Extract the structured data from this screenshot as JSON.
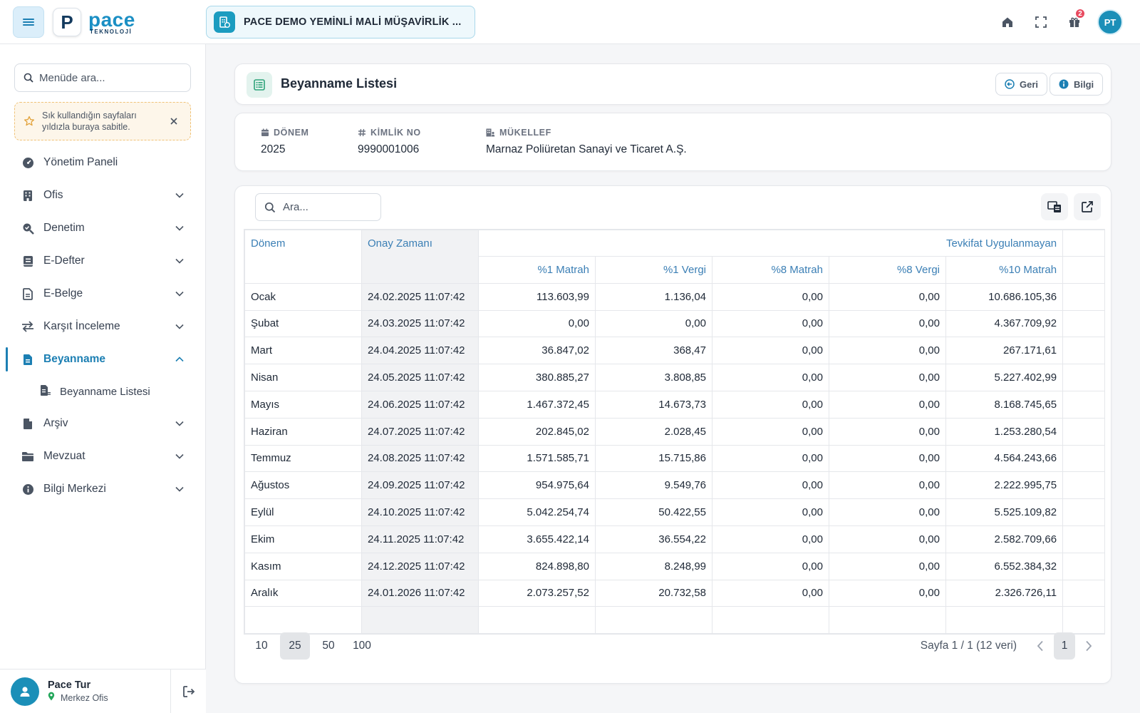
{
  "topbar": {
    "logo_letter": "P",
    "brand": "pace",
    "brand_sub": "TEKNOLOJİ",
    "company": "PACE DEMO YEMİNLİ MALİ MÜŞAVİRLİK ...",
    "notification_count": "2",
    "avatar_initials": "PT",
    "icons": [
      "home-icon",
      "fullscreen-icon",
      "gift-icon"
    ]
  },
  "sidebar": {
    "search_placeholder": "Menüde ara...",
    "pin_hint": "Sık kullandığın sayfaları yıldızla buraya sabitle.",
    "items": [
      {
        "label": "Yönetim Paneli",
        "icon": "dashboard-icon"
      },
      {
        "label": "Ofis",
        "icon": "building-icon"
      },
      {
        "label": "Denetim",
        "icon": "search-check-icon"
      },
      {
        "label": "E-Defter",
        "icon": "book-icon"
      },
      {
        "label": "E-Belge",
        "icon": "document-icon"
      },
      {
        "label": "Karşıt İnceleme",
        "icon": "arrows-swap-icon"
      },
      {
        "label": "Beyanname",
        "icon": "file-text-icon"
      },
      {
        "label": "Arşiv",
        "icon": "file-icon"
      },
      {
        "label": "Mevzuat",
        "icon": "folder-icon"
      },
      {
        "label": "Bilgi Merkezi",
        "icon": "info-icon"
      }
    ],
    "sub_item": "Beyanname Listesi",
    "user": {
      "name": "Pace Tur",
      "office": "Merkez Ofis"
    }
  },
  "header": {
    "title": "Beyanname Listesi",
    "back_label": "Geri",
    "info_label": "Bilgi"
  },
  "info": {
    "donem_label": "DÖNEM",
    "donem_value": "2025",
    "kimlik_label": "KİMLİK NO",
    "kimlik_value": "9990001006",
    "mukellef_label": "MÜKELLEF",
    "mukellef_value": "Marnaz Poliüretan Sanayi ve Ticaret A.Ş."
  },
  "table": {
    "search_placeholder": "Ara...",
    "col_donem": "Dönem",
    "col_onay": "Onay Zamanı",
    "group_header": "Tevkifat Uygulanmayan",
    "sub_headers": [
      "%1 Matrah",
      "%1 Vergi",
      "%8 Matrah",
      "%8 Vergi",
      "%10 Matrah"
    ],
    "rows": [
      {
        "donem": "Ocak",
        "onay": "24.02.2025 11:07:42",
        "v": [
          "113.603,99",
          "1.136,04",
          "0,00",
          "0,00",
          "10.686.105,36"
        ]
      },
      {
        "donem": "Şubat",
        "onay": "24.03.2025 11:07:42",
        "v": [
          "0,00",
          "0,00",
          "0,00",
          "0,00",
          "4.367.709,92"
        ]
      },
      {
        "donem": "Mart",
        "onay": "24.04.2025 11:07:42",
        "v": [
          "36.847,02",
          "368,47",
          "0,00",
          "0,00",
          "267.171,61"
        ]
      },
      {
        "donem": "Nisan",
        "onay": "24.05.2025 11:07:42",
        "v": [
          "380.885,27",
          "3.808,85",
          "0,00",
          "0,00",
          "5.227.402,99"
        ]
      },
      {
        "donem": "Mayıs",
        "onay": "24.06.2025 11:07:42",
        "v": [
          "1.467.372,45",
          "14.673,73",
          "0,00",
          "0,00",
          "8.168.745,65"
        ]
      },
      {
        "donem": "Haziran",
        "onay": "24.07.2025 11:07:42",
        "v": [
          "202.845,02",
          "2.028,45",
          "0,00",
          "0,00",
          "1.253.280,54"
        ]
      },
      {
        "donem": "Temmuz",
        "onay": "24.08.2025 11:07:42",
        "v": [
          "1.571.585,71",
          "15.715,86",
          "0,00",
          "0,00",
          "4.564.243,66"
        ]
      },
      {
        "donem": "Ağustos",
        "onay": "24.09.2025 11:07:42",
        "v": [
          "954.975,64",
          "9.549,76",
          "0,00",
          "0,00",
          "2.222.995,75"
        ]
      },
      {
        "donem": "Eylül",
        "onay": "24.10.2025 11:07:42",
        "v": [
          "5.042.254,74",
          "50.422,55",
          "0,00",
          "0,00",
          "5.525.109,82"
        ]
      },
      {
        "donem": "Ekim",
        "onay": "24.11.2025 11:07:42",
        "v": [
          "3.655.422,14",
          "36.554,22",
          "0,00",
          "0,00",
          "2.582.709,66"
        ]
      },
      {
        "donem": "Kasım",
        "onay": "24.12.2025 11:07:42",
        "v": [
          "824.898,80",
          "8.248,99",
          "0,00",
          "0,00",
          "6.552.384,32"
        ]
      },
      {
        "donem": "Aralık",
        "onay": "24.01.2026 11:07:42",
        "v": [
          "2.073.257,52",
          "20.732,58",
          "0,00",
          "0,00",
          "2.326.726,11"
        ]
      }
    ]
  },
  "pager": {
    "sizes": [
      "10",
      "25",
      "50",
      "100"
    ],
    "active_size": "25",
    "info": "Sayfa 1 / 1 (12 veri)",
    "current": "1"
  },
  "colors": {
    "accent": "#1c7fb3",
    "teal": "#1b9cc0",
    "badge": "#e84a5f"
  }
}
